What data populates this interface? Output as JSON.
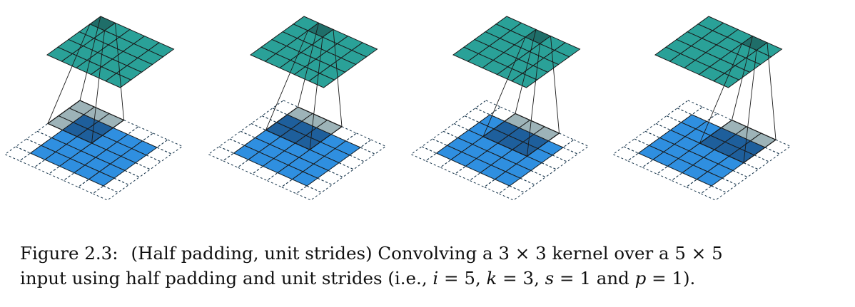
{
  "figure": {
    "input_size": 5,
    "kernel_size": 3,
    "padding": 1,
    "stride": 1,
    "output_size": 5,
    "panels": [
      {
        "kernel_row": 0,
        "kernel_col": 0,
        "output_row": 0,
        "output_col": 0
      },
      {
        "kernel_row": 0,
        "kernel_col": 1,
        "output_row": 0,
        "output_col": 1
      },
      {
        "kernel_row": 0,
        "kernel_col": 2,
        "output_row": 0,
        "output_col": 2
      },
      {
        "kernel_row": 0,
        "kernel_col": 3,
        "output_row": 0,
        "output_col": 3
      }
    ],
    "colors": {
      "output": "#2aa198",
      "output_active": "#1f6e69",
      "input": "#2f8fe0",
      "input_covered": "#1e5f9c",
      "kernel_padding": "#9db3b8",
      "grid_line": "#1a1a1a",
      "padding_line": "#15334a"
    }
  },
  "caption": {
    "label": "Figure 2.3:",
    "line1": "(Half padding, unit strides) Convolving a 3 × 3 kernel over a 5 × 5",
    "line2_prefix": "input using half padding and unit strides (i.e., ",
    "i_sym": "i",
    "i_val": " = 5, ",
    "k_sym": "k",
    "k_val": " = 3, ",
    "s_sym": "s",
    "s_val": " = 1 and ",
    "p_sym": "p",
    "p_val": " = 1)."
  }
}
